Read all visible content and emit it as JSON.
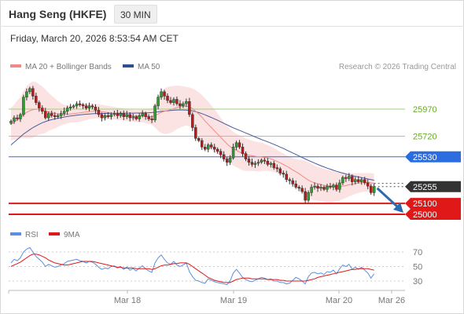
{
  "header": {
    "title": "Hang Seng (HKFE)",
    "interval": "30 MIN"
  },
  "timestamp": "Friday, March 20, 2026 8:53:54 AM CET",
  "legend": {
    "ma20": "MA 20 + Bollinger Bands",
    "ma50": "MA 50",
    "rsi": "RSI",
    "rsi_ma": "9MA"
  },
  "copyright": "Research © 2026 Trading Central",
  "colors": {
    "candle_up": "#2e9e2e",
    "candle_down": "#c01818",
    "ma20": "#f08a8a",
    "ma50": "#4a5a9a",
    "bollinger_fill": "#fcdede",
    "resistance": "#9ed27a",
    "pivot": "#2b6de0",
    "support": "#e01818",
    "last_price": "#333333",
    "rsi": "#5b8fe0",
    "rsi_ma": "#e01818",
    "arrow": "#2a6ab0"
  },
  "chart_data": [
    {
      "type": "candlestick",
      "title": "Hang Seng (HKFE)",
      "interval": "30 MIN",
      "x_labels": [
        "Mar 18",
        "Mar 19",
        "Mar 20",
        "Mar 26"
      ],
      "levels": [
        {
          "name": "resistance",
          "value": 25970,
          "label": "25970"
        },
        {
          "name": "resistance",
          "value": 25720,
          "label": "25720"
        },
        {
          "name": "pivot",
          "value": 25530,
          "label": "25530"
        },
        {
          "name": "last",
          "value": 25255,
          "label": "25255"
        },
        {
          "name": "support",
          "value": 25100,
          "label": "25100"
        },
        {
          "name": "support",
          "value": 25000,
          "label": "25000"
        }
      ],
      "y_scale": {
        "price_at_25970": 25970,
        "price_at_25000": 25000
      },
      "close": [
        25860,
        25890,
        25880,
        25920,
        26080,
        26130,
        26160,
        26090,
        26030,
        25980,
        25950,
        25890,
        25930,
        25910,
        25900,
        25910,
        25930,
        25950,
        25980,
        25990,
        26000,
        26020,
        26010,
        26000,
        25980,
        26000,
        25990,
        25960,
        25920,
        25890,
        25910,
        25900,
        25920,
        25930,
        25910,
        25930,
        25900,
        25920,
        25890,
        25900,
        25880,
        25910,
        25930,
        25900,
        25880,
        25870,
        26000,
        26080,
        26130,
        26090,
        26050,
        26030,
        26060,
        26020,
        26000,
        26020,
        26040,
        25920,
        25800,
        25700,
        25680,
        25620,
        25600,
        25640,
        25620,
        25600,
        25580,
        25550,
        25510,
        25480,
        25520,
        25620,
        25660,
        25620,
        25560,
        25510,
        25480,
        25460,
        25470,
        25480,
        25500,
        25490,
        25460,
        25470,
        25430,
        25420,
        25380,
        25370,
        25320,
        25310,
        25280,
        25250,
        25240,
        25210,
        25130,
        25200,
        25250,
        25260,
        25240,
        25250,
        25230,
        25260,
        25250,
        25270,
        25230,
        25290,
        25340,
        25330,
        25350,
        25300,
        25320,
        25300,
        25320,
        25290,
        25260,
        25200,
        25255
      ],
      "ma20": [
        25830,
        25850,
        25870,
        25890,
        25920,
        25940,
        25955,
        25965,
        25970,
        25968,
        25960,
        25950,
        25945,
        25938,
        25930,
        25925,
        25922,
        25920,
        25922,
        25925,
        25928,
        25932,
        25936,
        25940,
        25944,
        25948,
        25950,
        25952,
        25950,
        25946,
        25942,
        25938,
        25935,
        25932,
        25928,
        25925,
        25920,
        25915,
        25910,
        25908,
        25905,
        25905,
        25906,
        25905,
        25902,
        25900,
        25910,
        25925,
        25940,
        25950,
        25958,
        25965,
        25975,
        25985,
        25992,
        25995,
        25998,
        25990,
        25975,
        25950,
        25925,
        25895,
        25860,
        25830,
        25800,
        25770,
        25740,
        25710,
        25680,
        25650,
        25625,
        25605,
        25590,
        25575,
        25560,
        25550,
        25545,
        25540,
        25535,
        25530,
        25528,
        25525,
        25520,
        25512,
        25500,
        25488,
        25475,
        25460,
        25445,
        25428,
        25410,
        25392,
        25375,
        25355,
        25335,
        25315,
        25300,
        25290,
        25282,
        25275,
        25268,
        25262,
        25258,
        25256,
        25255,
        25256,
        25260,
        25265,
        25272,
        25278,
        25284,
        25288,
        25292,
        25294,
        25294,
        25290,
        25285
      ],
      "bb_upper": [
        25980,
        26010,
        26050,
        26080,
        26140,
        26180,
        26210,
        26225,
        26220,
        26200,
        26180,
        26150,
        26120,
        26095,
        26070,
        26045,
        26025,
        26010,
        26005,
        26005,
        26010,
        26015,
        26020,
        26020,
        26020,
        26020,
        26020,
        26020,
        26015,
        26010,
        26005,
        26000,
        25995,
        25990,
        25985,
        25980,
        25975,
        25970,
        25965,
        25962,
        25960,
        25962,
        25965,
        25968,
        25970,
        25975,
        26020,
        26080,
        26130,
        26160,
        26175,
        26180,
        26185,
        26185,
        26185,
        26180,
        26175,
        26170,
        26160,
        26145,
        26125,
        26100,
        26070,
        26040,
        26005,
        25970,
        25930,
        25890,
        25850,
        25815,
        25785,
        25760,
        25745,
        25730,
        25715,
        25700,
        25690,
        25680,
        25672,
        25665,
        25660,
        25650,
        25640,
        25628,
        25612,
        25595,
        25578,
        25560,
        25545,
        25530,
        25520,
        25510,
        25505,
        25500,
        25495,
        25480,
        25465,
        25450,
        25438,
        25428,
        25420,
        25412,
        25405,
        25398,
        25390,
        25385,
        25382,
        25380,
        25380,
        25380,
        25380,
        25380,
        25380,
        25380,
        25380,
        25380,
        25375
      ],
      "bb_lower": [
        25680,
        25690,
        25690,
        25700,
        25700,
        25700,
        25700,
        25705,
        25720,
        25736,
        25740,
        25750,
        25770,
        25781,
        25790,
        25805,
        25819,
        25830,
        25839,
        25845,
        25846,
        25849,
        25852,
        25860,
        25868,
        25876,
        25880,
        25884,
        25885,
        25882,
        25879,
        25876,
        25875,
        25874,
        25871,
        25870,
        25865,
        25860,
        25855,
        25854,
        25850,
        25848,
        25847,
        25842,
        25834,
        25825,
        25800,
        25770,
        25750,
        25740,
        25741,
        25750,
        25765,
        25785,
        25799,
        25810,
        25821,
        25810,
        25790,
        25755,
        25725,
        25690,
        25650,
        25620,
        25595,
        25570,
        25550,
        25530,
        25510,
        25485,
        25465,
        25450,
        25435,
        25420,
        25405,
        25400,
        25400,
        25400,
        25398,
        25395,
        25396,
        25400,
        25400,
        25396,
        25388,
        25381,
        25372,
        25360,
        25345,
        25326,
        25300,
        25274,
        25245,
        25210,
        25175,
        25150,
        25135,
        25130,
        25126,
        25122,
        25116,
        25112,
        25111,
        25114,
        25120,
        25127,
        25138,
        25150,
        25164,
        25176,
        25188,
        25196,
        25204,
        25208,
        25208,
        25200,
        25195
      ],
      "ma50": [
        25640,
        25665,
        25690,
        25715,
        25740,
        25760,
        25780,
        25800,
        25815,
        25830,
        25845,
        25855,
        25865,
        25873,
        25880,
        25886,
        25892,
        25897,
        25902,
        25906,
        25910,
        25914,
        25917,
        25920,
        25923,
        25925,
        25927,
        25928,
        25929,
        25930,
        25930,
        25931,
        25931,
        25932,
        25932,
        25932,
        25932,
        25933,
        25933,
        25933,
        25934,
        25934,
        25935,
        25936,
        25937,
        25938,
        25941,
        25945,
        25949,
        25952,
        25955,
        25958,
        25960,
        25962,
        25962,
        25962,
        25961,
        25958,
        25953,
        25946,
        25938,
        25928,
        25917,
        25905,
        25893,
        25880,
        25867,
        25853,
        25839,
        25825,
        25811,
        25798,
        25786,
        25774,
        25762,
        25750,
        25738,
        25726,
        25714,
        25702,
        25690,
        25679,
        25668,
        25657,
        25645,
        25633,
        25620,
        25607,
        25593,
        25580,
        25566,
        25552,
        25538,
        25524,
        25510,
        25497,
        25484,
        25472,
        25460,
        25448,
        25437,
        25426,
        25416,
        25406,
        25397,
        25388,
        25380,
        25372,
        25364,
        25357,
        25350,
        25344,
        25338,
        25332,
        25326,
        25320,
        25314
      ]
    },
    {
      "type": "line",
      "title": "RSI",
      "y_ticks": [
        70,
        50,
        30
      ],
      "ylim": [
        20,
        80
      ],
      "series": [
        {
          "name": "RSI",
          "values": [
            55,
            60,
            58,
            62,
            70,
            74,
            76,
            70,
            64,
            60,
            56,
            50,
            53,
            51,
            49,
            50,
            52,
            54,
            57,
            58,
            59,
            60,
            58,
            57,
            55,
            57,
            56,
            53,
            49,
            46,
            48,
            47,
            50,
            51,
            48,
            50,
            46,
            49,
            45,
            47,
            44,
            48,
            51,
            47,
            44,
            42,
            55,
            62,
            66,
            60,
            55,
            53,
            57,
            52,
            50,
            52,
            55,
            43,
            36,
            31,
            30,
            28,
            27,
            33,
            31,
            29,
            28,
            27,
            26,
            25,
            30,
            41,
            46,
            41,
            35,
            32,
            30,
            29,
            31,
            33,
            35,
            34,
            32,
            33,
            30,
            30,
            28,
            28,
            26,
            27,
            31,
            35,
            33,
            30,
            26,
            36,
            41,
            42,
            40,
            41,
            39,
            43,
            42,
            45,
            40,
            47,
            52,
            50,
            53,
            46,
            49,
            46,
            49,
            45,
            41,
            34,
            40
          ]
        },
        {
          "name": "9MA",
          "values": [
            50,
            52,
            54,
            56,
            59,
            62,
            65,
            67,
            67,
            66,
            64,
            62,
            59,
            57,
            55,
            54,
            53,
            52,
            52,
            53,
            54,
            55,
            56,
            57,
            57,
            57,
            57,
            56,
            55,
            54,
            53,
            52,
            51,
            50,
            49,
            49,
            48,
            48,
            48,
            48,
            47,
            47,
            47,
            47,
            47,
            46,
            47,
            49,
            51,
            52,
            52,
            53,
            54,
            54,
            55,
            55,
            55,
            53,
            50,
            47,
            44,
            41,
            38,
            35,
            33,
            31,
            30,
            29,
            28,
            28,
            28,
            30,
            32,
            33,
            34,
            34,
            34,
            33,
            33,
            33,
            33,
            33,
            32,
            32,
            32,
            32,
            31,
            31,
            30,
            30,
            30,
            30,
            30,
            30,
            30,
            31,
            32,
            33,
            35,
            36,
            37,
            38,
            39,
            40,
            41,
            42,
            43,
            44,
            45,
            46,
            46,
            47,
            47,
            47,
            47,
            46,
            45
          ]
        }
      ]
    }
  ]
}
